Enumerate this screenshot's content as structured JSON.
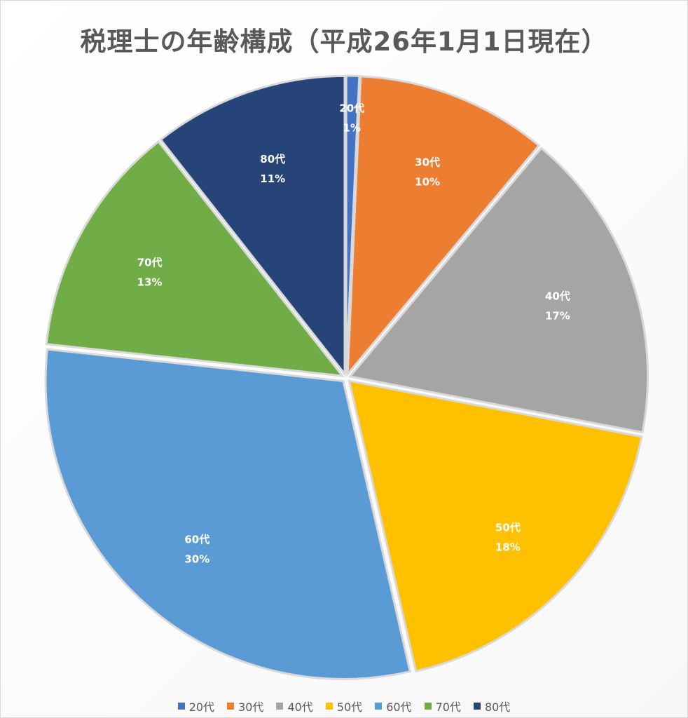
{
  "chart_data": {
    "type": "pie",
    "title": "税理士の年齢構成（平成26年1月1日現在）",
    "start_angle_deg": 0,
    "label_format": "{category}\n{percent}",
    "legend_position": "bottom",
    "slices": [
      {
        "category": "20代",
        "value": 0.7,
        "label_percent": "1%",
        "color": "#4472C4"
      },
      {
        "category": "30代",
        "value": 10.4,
        "label_percent": "10%",
        "color": "#ED7D31"
      },
      {
        "category": "40代",
        "value": 16.9,
        "label_percent": "17%",
        "color": "#A5A5A5"
      },
      {
        "category": "50代",
        "value": 18.4,
        "label_percent": "18%",
        "color": "#FFC000"
      },
      {
        "category": "60代",
        "value": 30.3,
        "label_percent": "30%",
        "color": "#5B9BD5"
      },
      {
        "category": "70代",
        "value": 12.7,
        "label_percent": "13%",
        "color": "#70AD47"
      },
      {
        "category": "80代",
        "value": 10.6,
        "label_percent": "11%",
        "color": "#264478"
      }
    ]
  },
  "colors": {
    "title": "#595959",
    "legend_text": "#595959",
    "slice_border": "#d9d9d9",
    "label_text": "#ffffff"
  }
}
